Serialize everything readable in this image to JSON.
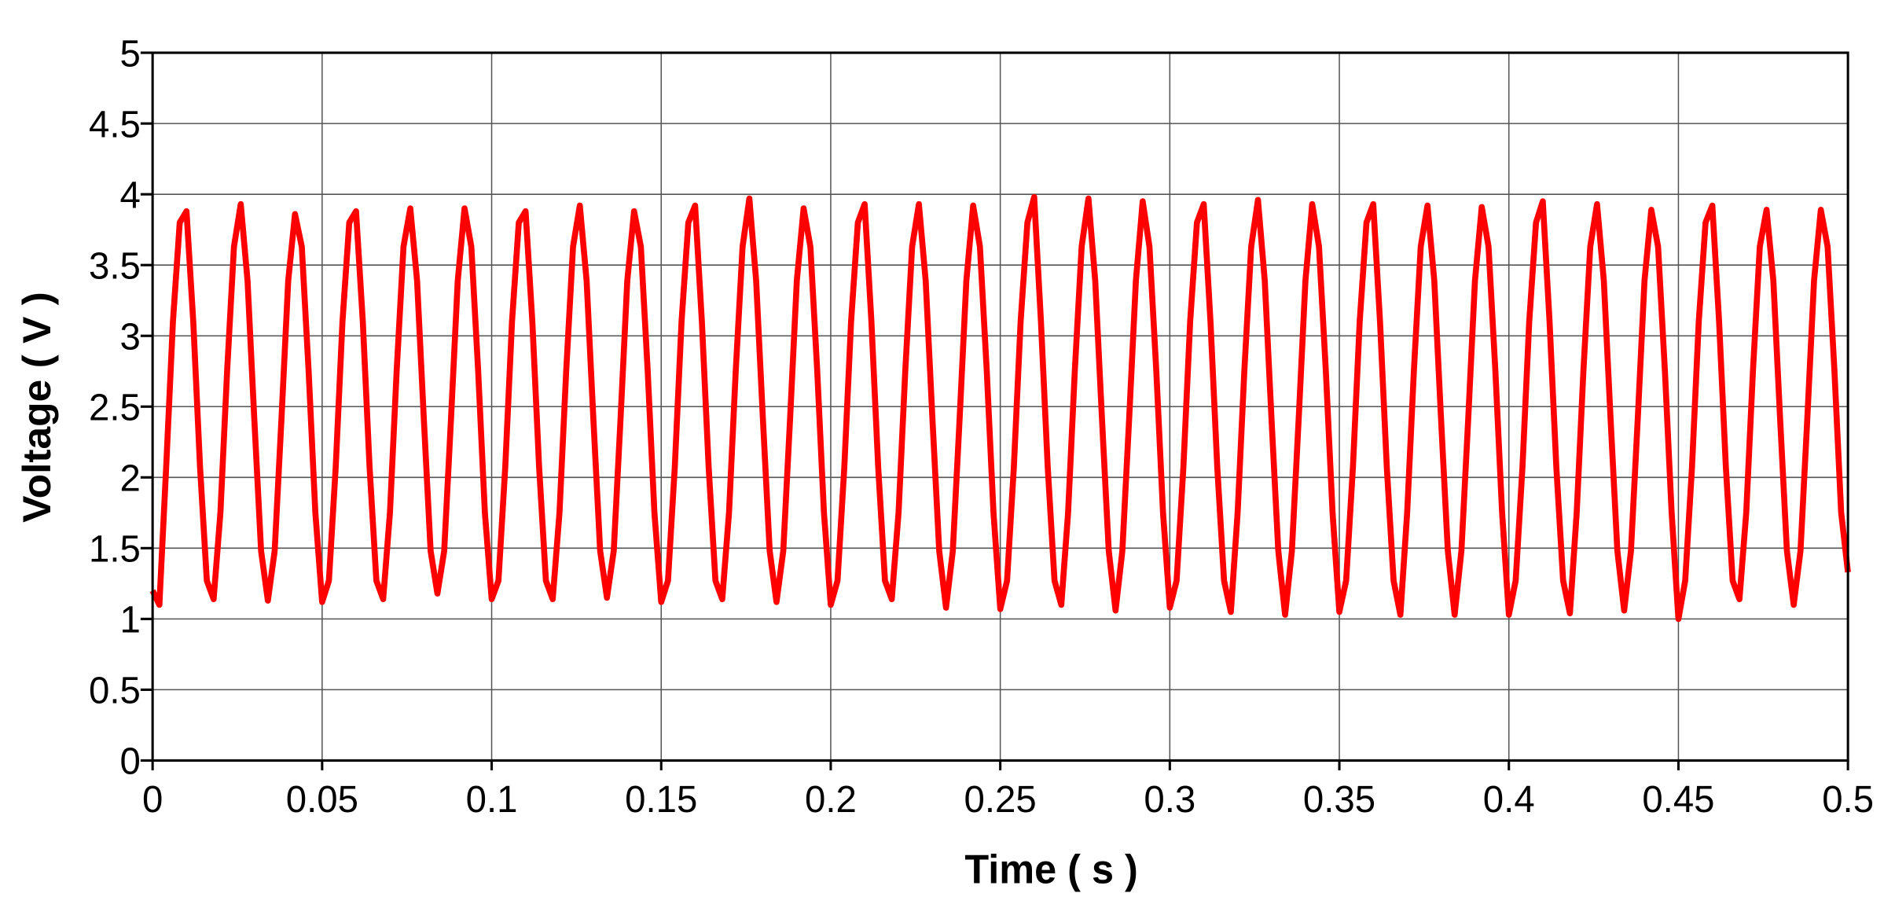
{
  "chart_data": {
    "type": "line",
    "x_label": "Time ( s )",
    "y_label": "Voltage ( V )",
    "xlim": [
      0,
      0.5
    ],
    "ylim": [
      0,
      5
    ],
    "xticks": [
      0,
      0.05,
      0.1,
      0.15,
      0.2,
      0.25,
      0.3,
      0.35,
      0.4,
      0.45,
      0.5
    ],
    "yticks": [
      0,
      0.5,
      1,
      1.5,
      2,
      2.5,
      3,
      3.5,
      4,
      4.5,
      5
    ],
    "grid": true,
    "x": [
      0,
      0.002,
      0.004,
      0.006,
      0.008,
      0.01,
      0.012,
      0.014,
      0.016,
      0.018,
      0.02,
      0.022,
      0.024,
      0.026,
      0.028,
      0.03,
      0.032,
      0.034,
      0.036,
      0.038,
      0.04,
      0.042,
      0.044,
      0.046,
      0.048,
      0.05,
      0.052,
      0.054,
      0.056,
      0.058,
      0.06,
      0.062,
      0.064,
      0.066,
      0.068,
      0.07,
      0.072,
      0.074,
      0.076,
      0.078,
      0.08,
      0.082,
      0.084,
      0.086,
      0.088,
      0.09,
      0.092,
      0.094,
      0.096,
      0.098,
      0.1,
      0.102,
      0.104,
      0.106,
      0.108,
      0.11,
      0.112,
      0.114,
      0.116,
      0.118,
      0.12,
      0.122,
      0.124,
      0.126,
      0.128,
      0.13,
      0.132,
      0.134,
      0.136,
      0.138,
      0.14,
      0.142,
      0.144,
      0.146,
      0.148,
      0.15,
      0.152,
      0.154,
      0.156,
      0.158,
      0.16,
      0.162,
      0.164,
      0.166,
      0.168,
      0.17,
      0.172,
      0.174,
      0.176,
      0.178,
      0.18,
      0.182,
      0.184,
      0.186,
      0.188,
      0.19,
      0.192,
      0.194,
      0.196,
      0.198,
      0.2,
      0.202,
      0.204,
      0.206,
      0.208,
      0.21,
      0.212,
      0.214,
      0.216,
      0.218,
      0.22,
      0.222,
      0.224,
      0.226,
      0.228,
      0.23,
      0.232,
      0.234,
      0.236,
      0.238,
      0.24,
      0.242,
      0.244,
      0.246,
      0.248,
      0.25,
      0.252,
      0.254,
      0.256,
      0.258,
      0.26,
      0.262,
      0.264,
      0.266,
      0.268,
      0.27,
      0.272,
      0.274,
      0.276,
      0.278,
      0.28,
      0.282,
      0.284,
      0.286,
      0.288,
      0.29,
      0.292,
      0.294,
      0.296,
      0.298,
      0.3,
      0.302,
      0.304,
      0.306,
      0.308,
      0.31,
      0.312,
      0.314,
      0.316,
      0.318,
      0.32,
      0.322,
      0.324,
      0.326,
      0.328,
      0.33,
      0.332,
      0.334,
      0.336,
      0.338,
      0.34,
      0.342,
      0.344,
      0.346,
      0.348,
      0.35,
      0.352,
      0.354,
      0.356,
      0.358,
      0.36,
      0.362,
      0.364,
      0.366,
      0.368,
      0.37,
      0.372,
      0.374,
      0.376,
      0.378,
      0.38,
      0.382,
      0.384,
      0.386,
      0.388,
      0.39,
      0.392,
      0.394,
      0.396,
      0.398,
      0.4,
      0.402,
      0.404,
      0.406,
      0.408,
      0.41,
      0.412,
      0.414,
      0.416,
      0.418,
      0.42,
      0.422,
      0.424,
      0.426,
      0.428,
      0.43,
      0.432,
      0.434,
      0.436,
      0.438,
      0.44,
      0.442,
      0.444,
      0.446,
      0.448,
      0.45,
      0.452,
      0.454,
      0.456,
      0.458,
      0.46,
      0.462,
      0.464,
      0.466,
      0.468,
      0.47,
      0.472,
      0.474,
      0.476,
      0.478,
      0.48,
      0.482,
      0.484,
      0.486,
      0.488,
      0.49,
      0.492,
      0.494,
      0.496,
      0.498,
      0.5
    ],
    "series": [
      {
        "color": "#ff0000",
        "values": [
          1.2,
          1.1,
          2.07,
          3.1,
          3.8,
          3.88,
          3.1,
          2.07,
          1.27,
          1.14,
          1.75,
          2.76,
          3.63,
          3.93,
          3.39,
          2.41,
          1.48,
          1.13,
          1.48,
          2.41,
          3.39,
          3.86,
          3.63,
          2.76,
          1.75,
          1.12,
          1.27,
          2.07,
          3.1,
          3.8,
          3.88,
          3.1,
          2.07,
          1.27,
          1.14,
          1.75,
          2.76,
          3.63,
          3.9,
          3.39,
          2.41,
          1.48,
          1.18,
          1.48,
          2.41,
          3.39,
          3.9,
          3.63,
          2.76,
          1.75,
          1.14,
          1.27,
          2.07,
          3.1,
          3.8,
          3.88,
          3.1,
          2.07,
          1.27,
          1.14,
          1.75,
          2.76,
          3.63,
          3.92,
          3.39,
          2.41,
          1.48,
          1.15,
          1.48,
          2.41,
          3.39,
          3.88,
          3.63,
          2.76,
          1.75,
          1.12,
          1.27,
          2.07,
          3.1,
          3.8,
          3.92,
          3.1,
          2.07,
          1.27,
          1.14,
          1.75,
          2.76,
          3.63,
          3.97,
          3.39,
          2.41,
          1.48,
          1.12,
          1.48,
          2.41,
          3.39,
          3.9,
          3.63,
          2.76,
          1.75,
          1.1,
          1.27,
          2.07,
          3.1,
          3.8,
          3.93,
          3.1,
          2.07,
          1.27,
          1.14,
          1.75,
          2.76,
          3.63,
          3.93,
          3.39,
          2.41,
          1.48,
          1.08,
          1.48,
          2.41,
          3.39,
          3.92,
          3.63,
          2.76,
          1.75,
          1.07,
          1.27,
          2.07,
          3.1,
          3.8,
          3.98,
          3.1,
          2.07,
          1.27,
          1.1,
          1.75,
          2.76,
          3.63,
          3.97,
          3.39,
          2.41,
          1.48,
          1.06,
          1.48,
          2.41,
          3.39,
          3.95,
          3.63,
          2.76,
          1.75,
          1.08,
          1.27,
          2.07,
          3.1,
          3.8,
          3.93,
          3.1,
          2.07,
          1.27,
          1.05,
          1.75,
          2.76,
          3.63,
          3.96,
          3.39,
          2.41,
          1.48,
          1.03,
          1.48,
          2.41,
          3.39,
          3.93,
          3.63,
          2.76,
          1.75,
          1.05,
          1.27,
          2.07,
          3.1,
          3.8,
          3.93,
          3.1,
          2.07,
          1.27,
          1.03,
          1.75,
          2.76,
          3.63,
          3.92,
          3.39,
          2.41,
          1.48,
          1.03,
          1.48,
          2.41,
          3.39,
          3.91,
          3.63,
          2.76,
          1.75,
          1.03,
          1.27,
          2.07,
          3.1,
          3.8,
          3.95,
          3.1,
          2.07,
          1.27,
          1.04,
          1.75,
          2.76,
          3.63,
          3.93,
          3.39,
          2.41,
          1.48,
          1.06,
          1.48,
          2.41,
          3.39,
          3.89,
          3.63,
          2.76,
          1.75,
          1.0,
          1.27,
          2.07,
          3.1,
          3.8,
          3.92,
          3.1,
          2.07,
          1.27,
          1.14,
          1.75,
          2.76,
          3.63,
          3.89,
          3.39,
          2.41,
          1.48,
          1.1,
          1.48,
          2.41,
          3.39,
          3.89,
          3.63,
          2.76,
          1.75,
          1.33
        ]
      }
    ]
  }
}
